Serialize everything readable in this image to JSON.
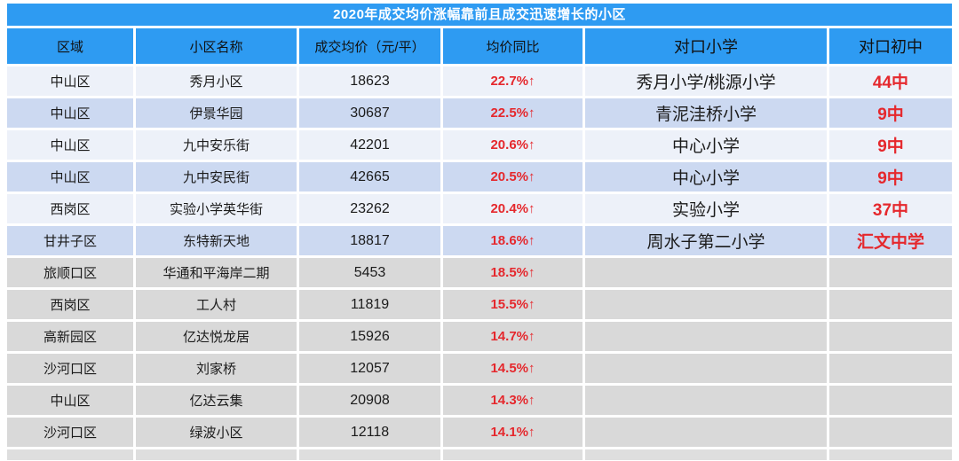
{
  "title": "2020年成交均价涨幅靠前且成交迅速增长的小区",
  "colors": {
    "header-blue": "#2e9bf2",
    "row-light": "#edf1f9",
    "row-blue": "#ccd9f1",
    "row-gray": "#d9d9d9",
    "partial-gray": "#dedede",
    "accent-red": "#e5282d",
    "text-dark": "#1b1b1b",
    "title-text": "#ffffff",
    "page-bg": "#ffffff"
  },
  "table": {
    "headers": [
      "区域",
      "小区名称",
      "成交均价（元/平）",
      "均价同比",
      "对口小学",
      "对口初中"
    ],
    "up_arrow": "↑",
    "rows": [
      {
        "district": "中山区",
        "community": "秀月小区",
        "price": "18623",
        "yoy": "22.7%↑",
        "primary": "秀月小学/桃源小学",
        "middle": "44中",
        "tone": "light"
      },
      {
        "district": "中山区",
        "community": "伊景华园",
        "price": "30687",
        "yoy": "22.5%↑",
        "primary": "青泥洼桥小学",
        "middle": "9中",
        "tone": "blue"
      },
      {
        "district": "中山区",
        "community": "九中安乐街",
        "price": "42201",
        "yoy": "20.6%↑",
        "primary": "中心小学",
        "middle": "9中",
        "tone": "light"
      },
      {
        "district": "中山区",
        "community": "九中安民街",
        "price": "42665",
        "yoy": "20.5%↑",
        "primary": "中心小学",
        "middle": "9中",
        "tone": "blue"
      },
      {
        "district": "西岗区",
        "community": "实验小学英华街",
        "price": "23262",
        "yoy": "20.4%↑",
        "primary": "实验小学",
        "middle": "37中",
        "tone": "light"
      },
      {
        "district": "甘井子区",
        "community": "东特新天地",
        "price": "18817",
        "yoy": "18.6%↑",
        "primary": "周水子第二小学",
        "middle": "汇文中学",
        "tone": "blue"
      },
      {
        "district": "旅顺口区",
        "community": "华通和平海岸二期",
        "price": "5453",
        "yoy": "18.5%↑",
        "primary": "",
        "middle": "",
        "tone": "gray"
      },
      {
        "district": "西岗区",
        "community": "工人村",
        "price": "11819",
        "yoy": "15.5%↑",
        "primary": "",
        "middle": "",
        "tone": "gray"
      },
      {
        "district": "高新园区",
        "community": "亿达悦龙居",
        "price": "15926",
        "yoy": "14.7%↑",
        "primary": "",
        "middle": "",
        "tone": "gray"
      },
      {
        "district": "沙河口区",
        "community": "刘家桥",
        "price": "12057",
        "yoy": "14.5%↑",
        "primary": "",
        "middle": "",
        "tone": "gray"
      },
      {
        "district": "中山区",
        "community": "亿达云集",
        "price": "20908",
        "yoy": "14.3%↑",
        "primary": "",
        "middle": "",
        "tone": "gray"
      },
      {
        "district": "沙河口区",
        "community": "绿波小区",
        "price": "12118",
        "yoy": "14.1%↑",
        "primary": "",
        "middle": "",
        "tone": "gray"
      }
    ]
  },
  "chart_data": {
    "type": "table",
    "title": "2020年成交均价涨幅靠前且成交迅速增长的小区",
    "columns": [
      "区域",
      "小区名称",
      "成交均价（元/平）",
      "均价同比",
      "对口小学",
      "对口初中"
    ],
    "rows": [
      [
        "中山区",
        "秀月小区",
        18623,
        "22.7%↑",
        "秀月小学/桃源小学",
        "44中"
      ],
      [
        "中山区",
        "伊景华园",
        30687,
        "22.5%↑",
        "青泥洼桥小学",
        "9中"
      ],
      [
        "中山区",
        "九中安乐街",
        42201,
        "20.6%↑",
        "中心小学",
        "9中"
      ],
      [
        "中山区",
        "九中安民街",
        42665,
        "20.5%↑",
        "中心小学",
        "9中"
      ],
      [
        "西岗区",
        "实验小学英华街",
        23262,
        "20.4%↑",
        "实验小学",
        "37中"
      ],
      [
        "甘井子区",
        "东特新天地",
        18817,
        "18.6%↑",
        "周水子第二小学",
        "汇文中学"
      ],
      [
        "旅顺口区",
        "华通和平海岸二期",
        5453,
        "18.5%↑",
        "",
        ""
      ],
      [
        "西岗区",
        "工人村",
        11819,
        "15.5%↑",
        "",
        ""
      ],
      [
        "高新园区",
        "亿达悦龙居",
        15926,
        "14.7%↑",
        "",
        ""
      ],
      [
        "沙河口区",
        "刘家桥",
        12057,
        "14.5%↑",
        "",
        ""
      ],
      [
        "中山区",
        "亿达云集",
        20908,
        "14.3%↑",
        "",
        ""
      ],
      [
        "沙河口区",
        "绿波小区",
        12118,
        "14.1%↑",
        "",
        ""
      ]
    ],
    "yoy_values_pct": [
      22.7,
      22.5,
      20.6,
      20.5,
      20.4,
      18.6,
      18.5,
      15.5,
      14.7,
      14.5,
      14.3,
      14.1
    ],
    "layout": {
      "header_position": "top",
      "grid": true,
      "highlight_color_columns": [
        "均价同比",
        "对口初中"
      ]
    }
  }
}
